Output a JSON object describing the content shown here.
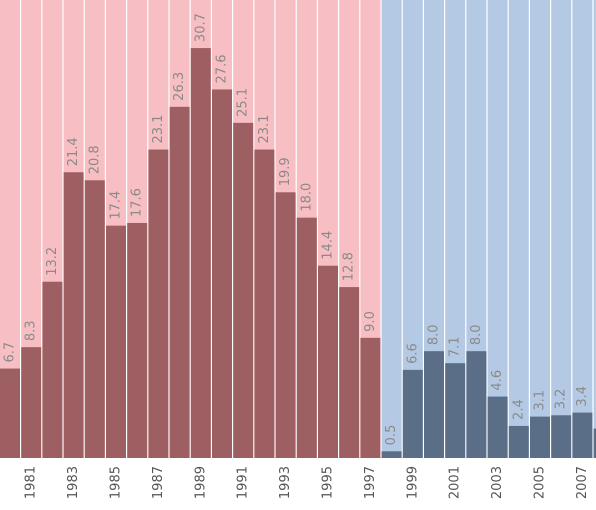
{
  "chart_data": {
    "type": "bar",
    "categories": [
      null,
      "1981",
      null,
      "1983",
      null,
      "1985",
      null,
      "1987",
      null,
      "1989",
      null,
      "1991",
      null,
      "1993",
      null,
      "1995",
      null,
      "1997",
      null,
      "1999",
      null,
      "2001",
      null,
      "2003",
      null,
      "2005",
      null,
      "2007",
      null
    ],
    "series": [
      {
        "color": "#9e5f63",
        "background": "#f7bec4",
        "values": [
          6.7,
          8.3,
          13.2,
          21.4,
          20.8,
          17.4,
          17.6,
          23.1,
          26.3,
          30.7,
          27.6,
          25.1,
          23.1,
          19.9,
          18.0,
          14.4,
          12.8,
          9.0,
          null,
          null,
          null,
          null,
          null,
          null,
          null,
          null,
          null,
          null,
          null
        ],
        "value_labels": [
          "6.7",
          "8.3",
          "13.2",
          "21.4",
          "20.8",
          "17.4",
          "17.6",
          "23.1",
          "26.3",
          "30.7",
          "27.6",
          "25.1",
          "23.1",
          "19.9",
          "18.0",
          "14.4",
          "12.8",
          "9.0",
          null,
          null,
          null,
          null,
          null,
          null,
          null,
          null,
          null,
          null,
          null
        ]
      },
      {
        "color": "#5a6e88",
        "background": "#b3c9e4",
        "values": [
          null,
          null,
          null,
          null,
          null,
          null,
          null,
          null,
          null,
          null,
          null,
          null,
          null,
          null,
          null,
          null,
          null,
          null,
          0.5,
          6.6,
          8.0,
          7.1,
          8.0,
          4.6,
          2.4,
          3.1,
          3.2,
          3.4,
          2.2
        ],
        "value_labels": [
          null,
          null,
          null,
          null,
          null,
          null,
          null,
          null,
          null,
          null,
          null,
          null,
          null,
          null,
          null,
          null,
          null,
          null,
          "0.5",
          "6.6",
          "8.0",
          "7.1",
          "8.0",
          "4.6",
          "2.4",
          "3.1",
          "3.2",
          "3.4",
          null
        ]
      }
    ],
    "ylim": [
      0,
      34.3
    ]
  }
}
